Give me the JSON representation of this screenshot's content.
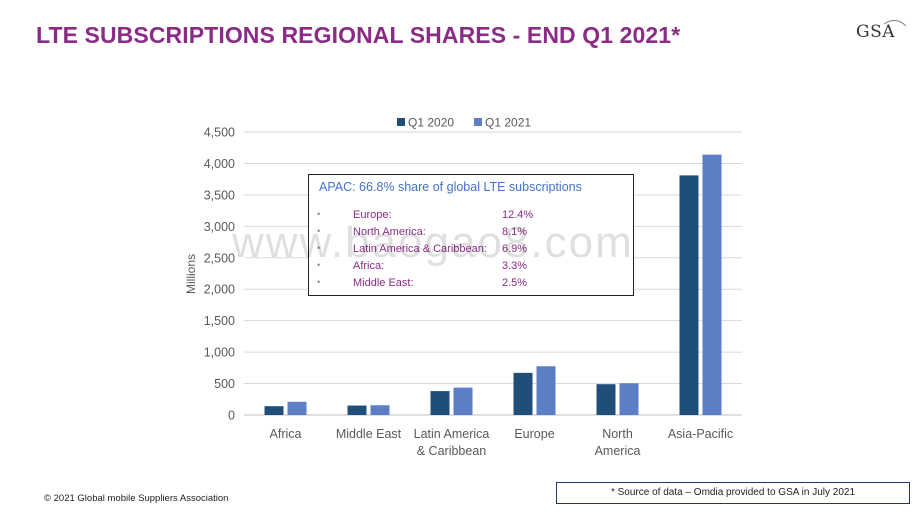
{
  "slide": {
    "title": "LTE SUBSCRIPTIONS REGIONAL SHARES - END Q1 2021*",
    "logo": "GSA",
    "copyright": "© 2021 Global mobile Suppliers Association",
    "source_note": "* Source of data – Omdia provided to GSA in July 2021",
    "watermark": "www.baogao8.com"
  },
  "callout": {
    "heading": "APAC: 66.8% share of global LTE subscriptions",
    "items": [
      {
        "region": "Europe:",
        "share": "12.4%"
      },
      {
        "region": "North America:",
        "share": "8.1%"
      },
      {
        "region": "Latin America & Caribbean:",
        "share": "6.9%"
      },
      {
        "region": "Africa:",
        "share": "3.3%"
      },
      {
        "region": "Middle East:",
        "share": "2.5%"
      }
    ]
  },
  "colors": {
    "title": "#8a2b86",
    "q1_2020": "#1f4e79",
    "q1_2021": "#5b7ec4",
    "gridline": "#d9d9d9",
    "axis_text": "#595959"
  },
  "chart_data": {
    "type": "bar",
    "title": "",
    "xlabel": "",
    "ylabel": "Millions",
    "ylim": [
      0,
      4500
    ],
    "yticks": [
      "0",
      "500",
      "1,000",
      "1,500",
      "2,000",
      "2,500",
      "3,000",
      "3,500",
      "4,000",
      "4,500"
    ],
    "ytick_values": [
      0,
      500,
      1000,
      1500,
      2000,
      2500,
      3000,
      3500,
      4000,
      4500
    ],
    "categories": [
      [
        "Africa"
      ],
      [
        "Middle East"
      ],
      [
        "Latin America",
        "& Caribbean"
      ],
      [
        "Europe"
      ],
      [
        "North",
        "America"
      ],
      [
        "Asia-Pacific"
      ]
    ],
    "legend_position": "top-center",
    "grid": true,
    "series": [
      {
        "name": "Q1 2020",
        "values": [
          140,
          150,
          380,
          670,
          490,
          3810
        ]
      },
      {
        "name": "Q1 2021",
        "values": [
          210,
          155,
          435,
          775,
          505,
          4140
        ]
      }
    ]
  }
}
